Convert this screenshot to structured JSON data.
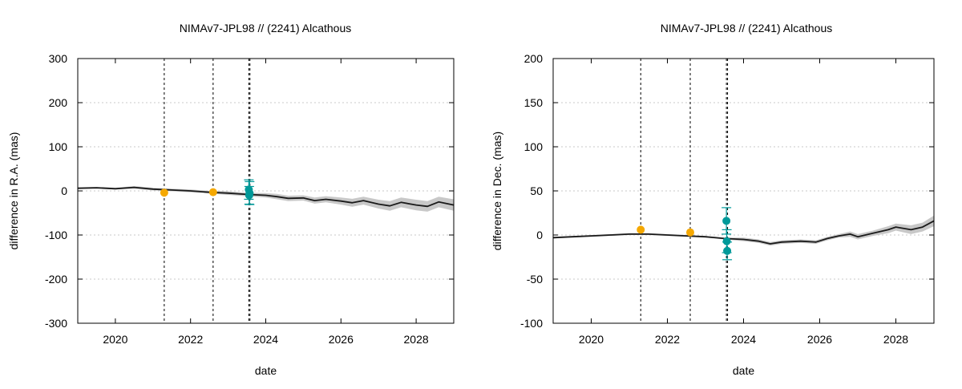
{
  "chart_data": [
    {
      "type": "line",
      "title": "NIMAv7-JPL98 // (2241) Alcathous",
      "xlabel": "date",
      "ylabel": "difference in R.A. (mas)",
      "xlim": [
        2019.0,
        2029.0
      ],
      "ylim": [
        -300,
        300
      ],
      "xticks": [
        2020,
        2022,
        2024,
        2026,
        2028
      ],
      "yticks": [
        -300,
        -200,
        -100,
        0,
        100,
        200,
        300
      ],
      "grid": "horizontal dotted",
      "vlines": [
        2021.3,
        2022.6,
        2023.55,
        2023.58
      ],
      "curve": {
        "x": [
          2019.0,
          2019.5,
          2020.0,
          2020.5,
          2021.0,
          2021.5,
          2022.0,
          2022.5,
          2023.0,
          2023.5,
          2024.0,
          2024.3,
          2024.6,
          2025.0,
          2025.3,
          2025.6,
          2026.0,
          2026.3,
          2026.6,
          2027.0,
          2027.3,
          2027.6,
          2028.0,
          2028.3,
          2028.6,
          2029.0
        ],
        "y": [
          6,
          7,
          5,
          8,
          4,
          2,
          0,
          -3,
          -5,
          -8,
          -10,
          -13,
          -17,
          -16,
          -22,
          -19,
          -23,
          -27,
          -22,
          -30,
          -34,
          -26,
          -32,
          -35,
          -25,
          -32
        ],
        "band": [
          2,
          2,
          2,
          3,
          3,
          3,
          3,
          3,
          4,
          4,
          5,
          6,
          6,
          6,
          7,
          7,
          8,
          9,
          9,
          10,
          11,
          11,
          12,
          12,
          12,
          13
        ]
      },
      "points": [
        {
          "x": 2021.3,
          "y": -4,
          "err": 0,
          "color": "#f5a800"
        },
        {
          "x": 2022.6,
          "y": -3,
          "err": 0,
          "color": "#f5a800"
        },
        {
          "x": 2023.55,
          "y": 3,
          "err": 22,
          "color": "#009999"
        },
        {
          "x": 2023.56,
          "y": -10,
          "err": 20,
          "color": "#009999"
        },
        {
          "x": 2023.57,
          "y": -5,
          "err": 26,
          "color": "#009999"
        }
      ]
    },
    {
      "type": "line",
      "title": "NIMAv7-JPL98 // (2241) Alcathous",
      "xlabel": "date",
      "ylabel": "difference in Dec. (mas)",
      "xlim": [
        2019.0,
        2029.0
      ],
      "ylim": [
        -100,
        200
      ],
      "xticks": [
        2020,
        2022,
        2024,
        2026,
        2028
      ],
      "yticks": [
        -100,
        -50,
        0,
        50,
        100,
        150,
        200
      ],
      "grid": "horizontal dotted",
      "vlines": [
        2021.3,
        2022.6,
        2023.55,
        2023.58
      ],
      "curve": {
        "x": [
          2019.0,
          2019.5,
          2020.0,
          2020.5,
          2021.0,
          2021.5,
          2022.0,
          2022.5,
          2023.0,
          2023.5,
          2024.0,
          2024.4,
          2024.7,
          2025.0,
          2025.5,
          2025.9,
          2026.2,
          2026.5,
          2026.8,
          2027.0,
          2027.4,
          2027.8,
          2028.0,
          2028.4,
          2028.7,
          2029.0
        ],
        "y": [
          -3,
          -2,
          -1,
          0,
          1,
          1,
          0,
          -1,
          -2,
          -4,
          -5,
          -7,
          -10,
          -8,
          -7,
          -8,
          -4,
          -1,
          1,
          -2,
          2,
          6,
          9,
          6,
          9,
          16
        ],
        "band": [
          1,
          1,
          1,
          1,
          1,
          1,
          1,
          1,
          1,
          1,
          2,
          2,
          2,
          2,
          2,
          2,
          2,
          2,
          3,
          3,
          3,
          4,
          4,
          5,
          5,
          6
        ]
      },
      "points": [
        {
          "x": 2021.3,
          "y": 6,
          "err": 0,
          "color": "#f5a800"
        },
        {
          "x": 2022.6,
          "y": 3,
          "err": 0,
          "color": "#f5a800"
        },
        {
          "x": 2023.55,
          "y": 16,
          "err": 15,
          "color": "#009999"
        },
        {
          "x": 2023.56,
          "y": -7,
          "err": 13,
          "color": "#009999"
        },
        {
          "x": 2023.57,
          "y": -18,
          "err": 10,
          "color": "#009999"
        }
      ]
    }
  ]
}
